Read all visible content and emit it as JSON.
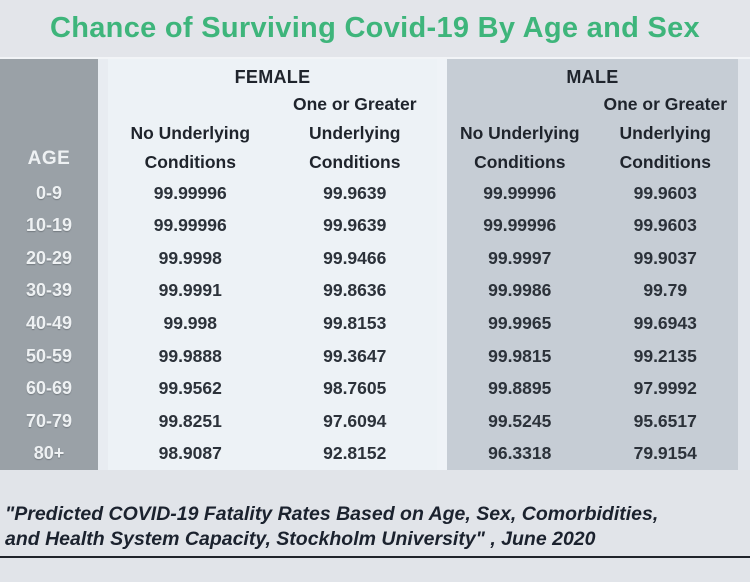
{
  "title": "Chance of Surviving Covid-19 By Age and Sex",
  "table": {
    "age_header": "AGE",
    "groups": [
      {
        "label": "FEMALE",
        "col1_line1": "No Underlying",
        "col1_line2": "Conditions",
        "col2_line1": "One or Greater",
        "col2_line2": "Underlying",
        "col2_line3": "Conditions"
      },
      {
        "label": "MALE",
        "col1_line1": "No Underlying",
        "col1_line2": "Conditions",
        "col2_line1": "One or Greater",
        "col2_line2": "Underlying",
        "col2_line3": "Conditions"
      }
    ]
  },
  "footer": {
    "line1": "\"Predicted COVID-19 Fatality Rates Based on Age, Sex, Comorbidities,",
    "line2": "and Health System Capacity,  Stockholm University\" , June 2020"
  },
  "colors": {
    "title_green": "#3eb57b",
    "age_column_gray": "#9aa1a7",
    "female_panel": "#edf2f6",
    "male_panel": "#c6cdd5",
    "page_background": "#dfe3e9",
    "text_dark": "#1f242c"
  },
  "chart_data": {
    "type": "table",
    "title": "Chance of Surviving Covid-19 By Age and Sex",
    "row_header": "AGE",
    "columns": [
      "Female - No Underlying Conditions",
      "Female - One or Greater Underlying Conditions",
      "Male - No Underlying Conditions",
      "Male - One or Greater Underlying Conditions"
    ],
    "age_groups": [
      "0-9",
      "10-19",
      "20-29",
      "30-39",
      "40-49",
      "50-59",
      "60-69",
      "70-79",
      "80+"
    ],
    "rows": [
      [
        "99.99996",
        "99.9639",
        "99.99996",
        "99.9603"
      ],
      [
        "99.99996",
        "99.9639",
        "99.99996",
        "99.9603"
      ],
      [
        "99.9998",
        "99.9466",
        "99.9997",
        "99.9037"
      ],
      [
        "99.9991",
        "99.8636",
        "99.9986",
        "99.79"
      ],
      [
        "99.998",
        "99.8153",
        "99.9965",
        "99.6943"
      ],
      [
        "99.9888",
        "99.3647",
        "99.9815",
        "99.2135"
      ],
      [
        "99.9562",
        "98.7605",
        "99.8895",
        "97.9992"
      ],
      [
        "99.8251",
        "97.6094",
        "99.5245",
        "95.6517"
      ],
      [
        "98.9087",
        "92.8152",
        "96.3318",
        "79.9154"
      ]
    ],
    "source_note": "\"Predicted COVID-19 Fatality Rates Based on Age, Sex, Comorbidities, and Health System Capacity, Stockholm University\", June 2020"
  }
}
